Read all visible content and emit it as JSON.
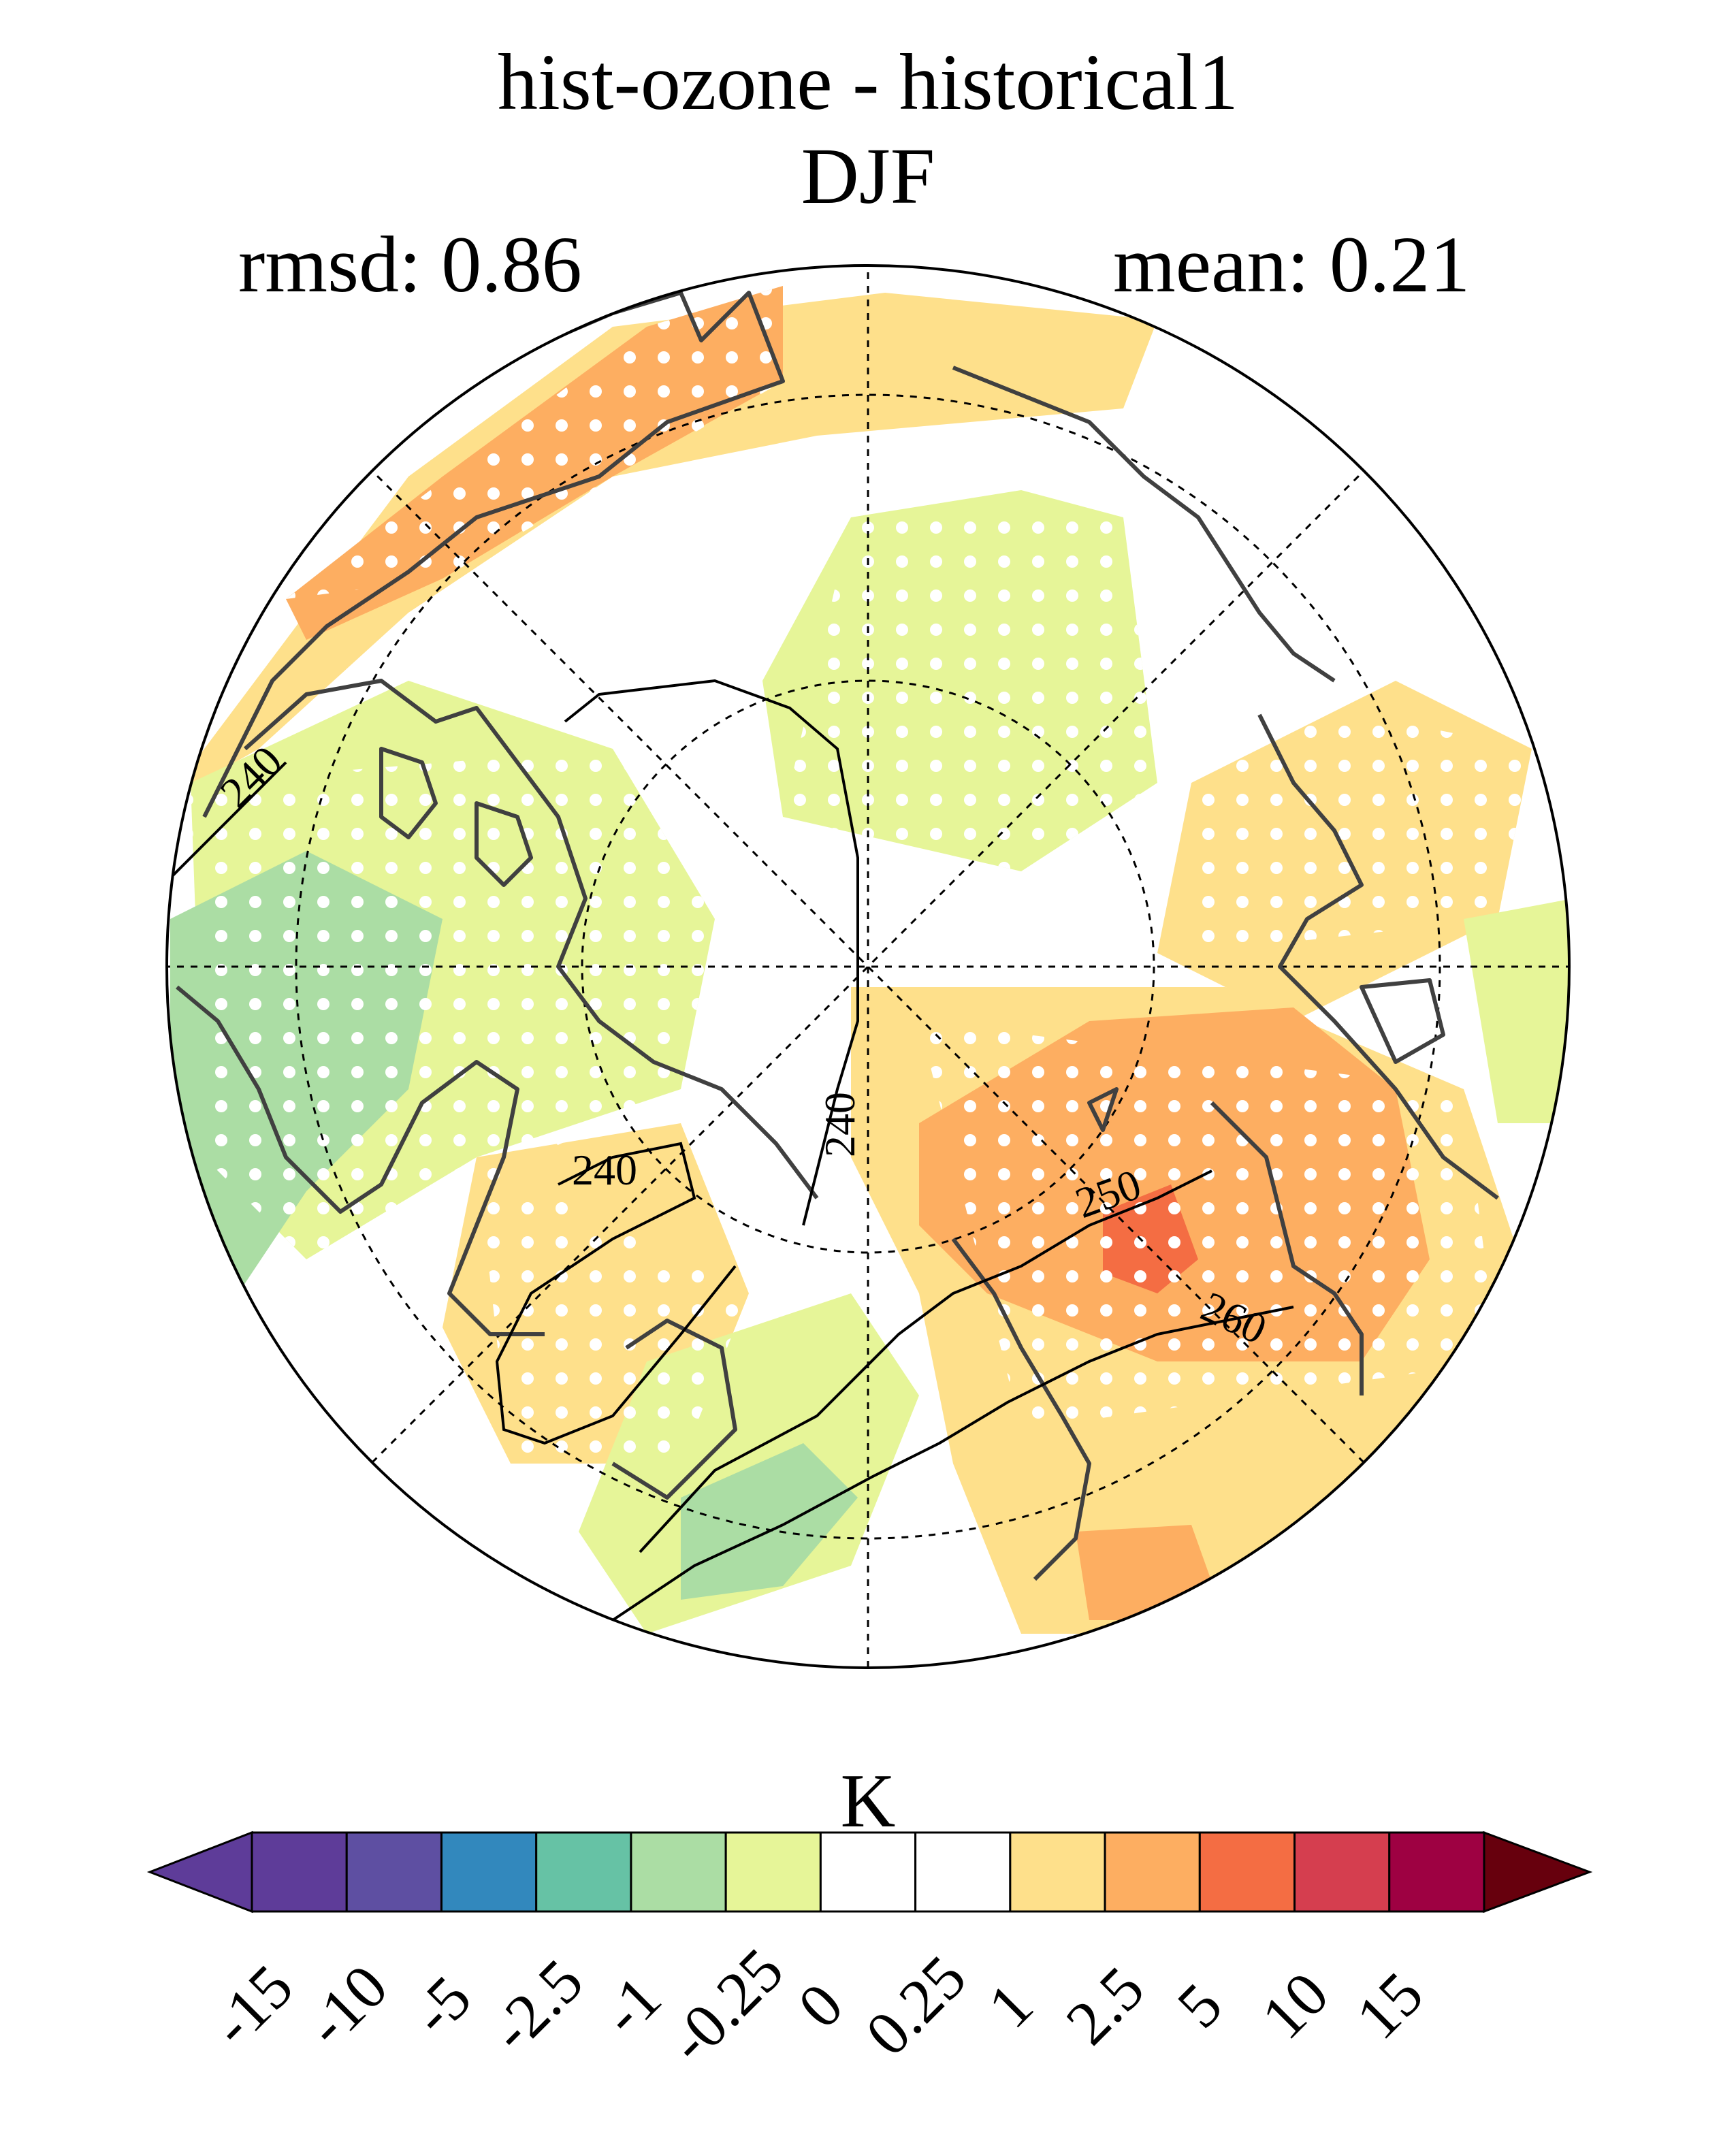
{
  "title": "hist-ozone - historical1",
  "season": "DJF",
  "stats": {
    "rmsd": "rmsd: 0.86",
    "mean": "mean: 0.21"
  },
  "colorbar": {
    "unit": "K",
    "ticks": [
      "-15",
      "-10",
      "-5",
      "-2.5",
      "-1",
      "-0.25",
      "0",
      "0.25",
      "1",
      "2.5",
      "5",
      "10",
      "15"
    ],
    "colors": [
      "#5e3c99",
      "#5e4fa2",
      "#3288bd",
      "#66c2a5",
      "#abdda4",
      "#e6f598",
      "#ffffff",
      "#ffffff",
      "#fee08b",
      "#fdae61",
      "#f46d43",
      "#d53e4f",
      "#9e0142"
    ],
    "extend_low_color": "#5e3c99",
    "extend_high_color": "#67000d"
  },
  "contour_labels": [
    "240",
    "240",
    "240",
    "250",
    "260"
  ]
}
